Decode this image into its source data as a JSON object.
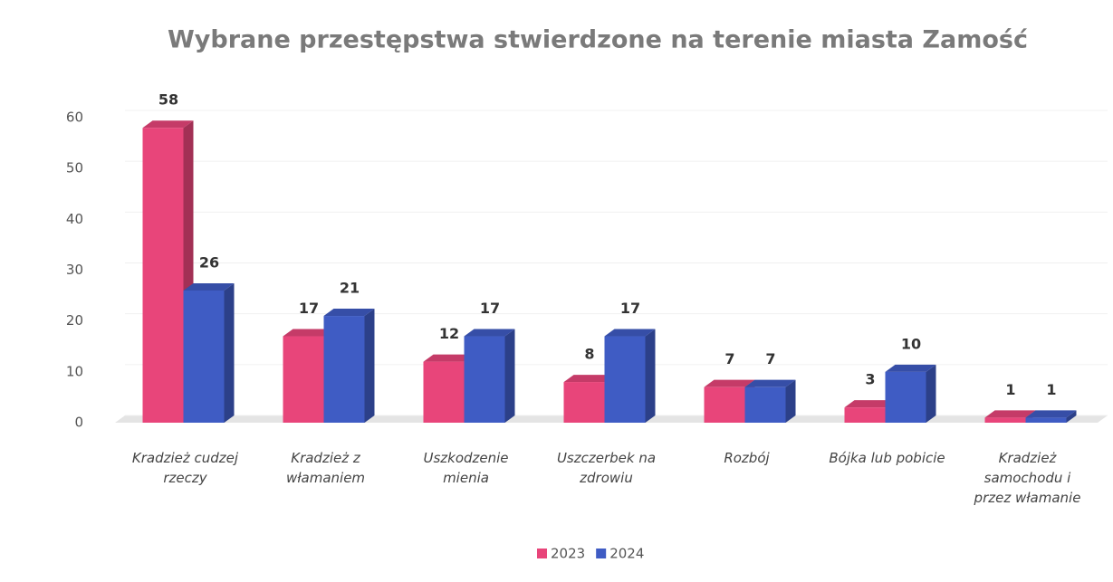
{
  "chart_data": {
    "type": "bar3d",
    "title": "Wybrane przestępstwa stwierdzone na terenie miasta Zamość",
    "categories": [
      "Kradzież cudzej rzeczy",
      "Kradzież z włamaniem",
      "Uszkodzenie mienia",
      "Uszczerbek na zdrowiu",
      "Rozbój",
      "Bójka lub pobicie",
      "Kradzież samochodu i przez włamanie"
    ],
    "series": [
      {
        "name": "2023",
        "color": "#e8457a",
        "values": [
          58,
          17,
          12,
          8,
          7,
          3,
          1
        ]
      },
      {
        "name": "2024",
        "color": "#3f5cc4",
        "values": [
          26,
          21,
          17,
          17,
          7,
          10,
          1
        ]
      }
    ],
    "ylim": [
      0,
      60
    ],
    "yticks": [
      0,
      10,
      20,
      30,
      40,
      50,
      60
    ],
    "grid": true,
    "legend": "bottom"
  }
}
